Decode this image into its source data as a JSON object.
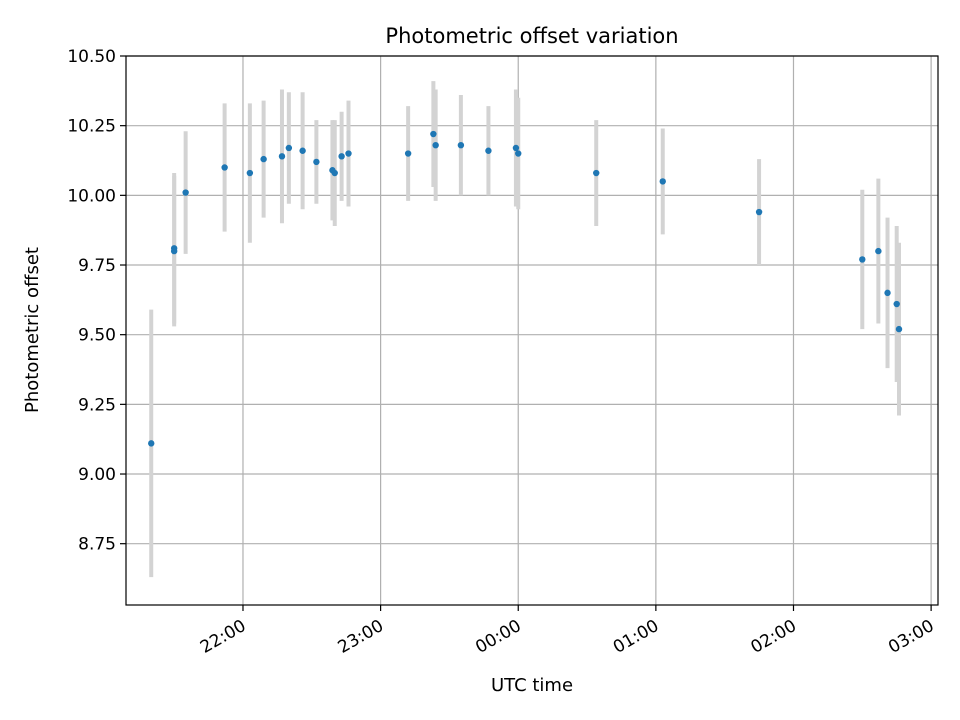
{
  "chart_data": {
    "type": "scatter",
    "title": "Photometric offset variation",
    "xlabel": "UTC time",
    "ylabel": "Photometric offset",
    "grid": true,
    "legend": "none",
    "colors": {
      "points": "#1f77b4",
      "errorbars": "#d3d3d3",
      "grid": "#b0b0b0",
      "axes": "#000000"
    },
    "xaxis": {
      "kind": "time",
      "start_date": "2023-01-01",
      "range": [
        "21:09",
        "03:03"
      ],
      "ticks": [
        "22:00",
        "23:00",
        "00:00",
        "01:00",
        "02:00",
        "03:00"
      ]
    },
    "ylim": [
      8.53,
      10.5
    ],
    "yticks": [
      "8.75",
      "9.00",
      "9.25",
      "9.50",
      "9.75",
      "10.00",
      "10.25",
      "10.50"
    ],
    "series": [
      {
        "points": [
          {
            "x": "21:20",
            "y": 9.11,
            "err": 0.48
          },
          {
            "x": "21:30",
            "y": 9.81,
            "err": 0.27
          },
          {
            "x": "21:30",
            "y": 9.8,
            "err": 0.27
          },
          {
            "x": "21:35",
            "y": 10.01,
            "err": 0.22
          },
          {
            "x": "21:52",
            "y": 10.1,
            "err": 0.23
          },
          {
            "x": "22:03",
            "y": 10.08,
            "err": 0.25
          },
          {
            "x": "22:09",
            "y": 10.13,
            "err": 0.21
          },
          {
            "x": "22:17",
            "y": 10.14,
            "err": 0.24
          },
          {
            "x": "22:20",
            "y": 10.17,
            "err": 0.2
          },
          {
            "x": "22:26",
            "y": 10.16,
            "err": 0.21
          },
          {
            "x": "22:32",
            "y": 10.12,
            "err": 0.15
          },
          {
            "x": "22:39",
            "y": 10.09,
            "err": 0.18
          },
          {
            "x": "22:40",
            "y": 10.08,
            "err": 0.19
          },
          {
            "x": "22:43",
            "y": 10.14,
            "err": 0.16
          },
          {
            "x": "22:46",
            "y": 10.15,
            "err": 0.19
          },
          {
            "x": "23:12",
            "y": 10.15,
            "err": 0.17
          },
          {
            "x": "23:23",
            "y": 10.22,
            "err": 0.19
          },
          {
            "x": "23:24",
            "y": 10.18,
            "err": 0.2
          },
          {
            "x": "23:35",
            "y": 10.18,
            "err": 0.18
          },
          {
            "x": "23:47",
            "y": 10.16,
            "err": 0.16
          },
          {
            "x": "23:59",
            "y": 10.17,
            "err": 0.21
          },
          {
            "x": "00:00",
            "y": 10.15,
            "err": 0.2
          },
          {
            "x": "00:34",
            "y": 10.08,
            "err": 0.19
          },
          {
            "x": "01:03",
            "y": 10.05,
            "err": 0.19
          },
          {
            "x": "01:45",
            "y": 9.94,
            "err": 0.19
          },
          {
            "x": "02:30",
            "y": 9.77,
            "err": 0.25
          },
          {
            "x": "02:37",
            "y": 9.8,
            "err": 0.26
          },
          {
            "x": "02:41",
            "y": 9.65,
            "err": 0.27
          },
          {
            "x": "02:45",
            "y": 9.61,
            "err": 0.28
          },
          {
            "x": "02:46",
            "y": 9.52,
            "err": 0.31
          }
        ]
      }
    ]
  }
}
